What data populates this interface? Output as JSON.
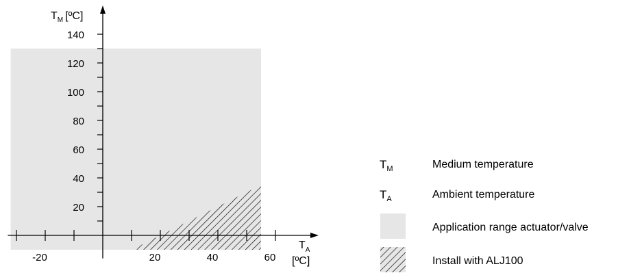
{
  "chart_data": {
    "type": "area",
    "x_axis": {
      "symbol": "T",
      "subscript": "A",
      "unit": "[ºC]",
      "range": [
        -33,
        75
      ],
      "tick_step": 10,
      "labeled_ticks": [
        {
          "value": -20,
          "label": "-20"
        },
        {
          "value": 20,
          "label": "20"
        },
        {
          "value": 40,
          "label": "40"
        },
        {
          "value": 60,
          "label": "60"
        }
      ]
    },
    "y_axis": {
      "symbol": "T",
      "subscript": "M",
      "unit": "[ºC]",
      "range": [
        -16,
        160
      ],
      "tick_step": 10,
      "labeled_ticks": [
        {
          "value": 20,
          "label": "20"
        },
        {
          "value": 40,
          "label": "40"
        },
        {
          "value": 60,
          "label": "60"
        },
        {
          "value": 80,
          "label": "80"
        },
        {
          "value": 100,
          "label": "100"
        },
        {
          "value": 120,
          "label": "120"
        },
        {
          "value": 140,
          "label": "140"
        }
      ]
    },
    "regions": [
      {
        "id": "application_range",
        "fill": "solid",
        "color": "#e6e6e6",
        "polygon": [
          [
            -32,
            -10
          ],
          [
            55,
            -10
          ],
          [
            55,
            130
          ],
          [
            -32,
            130
          ]
        ]
      },
      {
        "id": "install_with_alj100",
        "fill": "hatch",
        "polygon": [
          [
            10,
            -10
          ],
          [
            55,
            -10
          ],
          [
            55,
            35
          ],
          [
            20,
            0
          ]
        ]
      }
    ],
    "grid": false
  },
  "legend": {
    "items": [
      {
        "type": "symbol",
        "symbol": "T",
        "subscript": "M",
        "text": "Medium temperature"
      },
      {
        "type": "symbol",
        "symbol": "T",
        "subscript": "A",
        "text": "Ambient temperature"
      },
      {
        "type": "swatch-solid",
        "text": "Application range actuator/valve"
      },
      {
        "type": "swatch-hatch",
        "text": "Install with ALJ100"
      }
    ]
  }
}
